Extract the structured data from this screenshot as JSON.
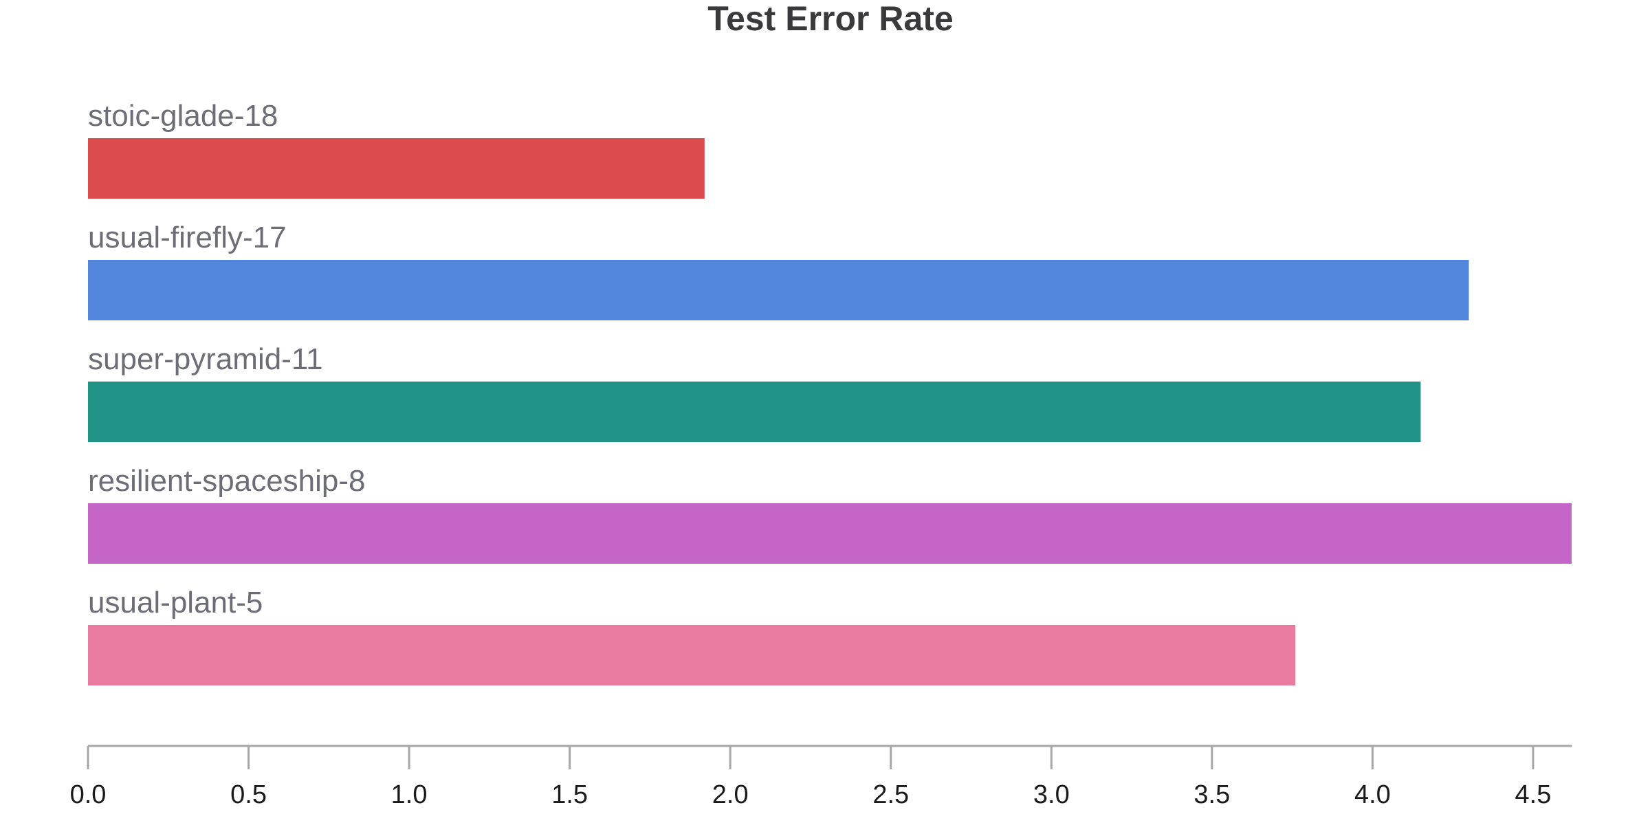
{
  "chart_data": {
    "type": "bar",
    "orientation": "horizontal",
    "title": "Test Error Rate",
    "xlabel": "",
    "ylabel": "",
    "xlim": [
      0,
      4.62
    ],
    "x_ticks": [
      "0.0",
      "0.5",
      "1.0",
      "1.5",
      "2.0",
      "2.5",
      "3.0",
      "3.5",
      "4.0",
      "4.5"
    ],
    "grid": false,
    "categories": [
      "stoic-glade-18",
      "usual-firefly-17",
      "super-pyramid-11",
      "resilient-spaceship-8",
      "usual-plant-5"
    ],
    "values": [
      1.92,
      4.3,
      4.15,
      4.62,
      3.76
    ],
    "colors": [
      "#db4d4d",
      "#5387dd",
      "#229487",
      "#c565c7",
      "#e87b9f"
    ]
  }
}
